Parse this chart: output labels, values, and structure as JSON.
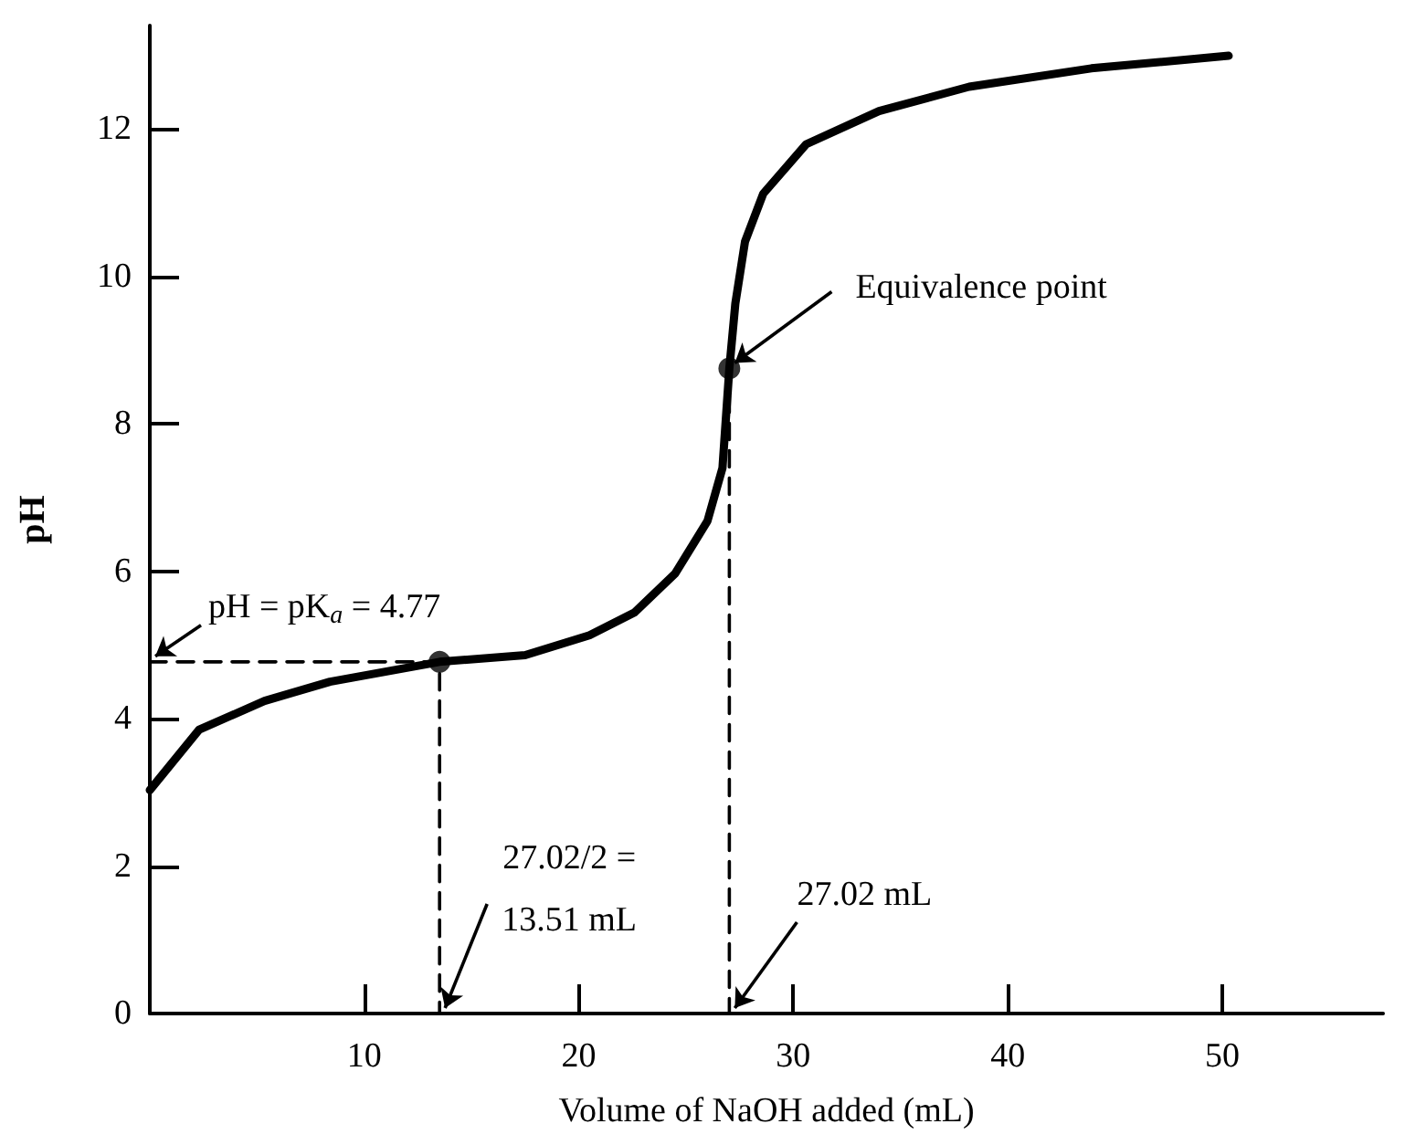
{
  "chart_data": {
    "type": "line",
    "xlabel": "Volume of NaOH added (mL)",
    "ylabel": "pH",
    "xlim": [
      0,
      57.5
    ],
    "xticks": [
      10,
      20,
      30,
      40,
      50
    ],
    "ylim": [
      0,
      13.4
    ],
    "yticks": [
      0,
      2,
      4,
      6,
      8,
      10,
      12
    ],
    "grid": false,
    "series": [
      {
        "color": "#000000",
        "marker": "none",
        "line_style": "solid",
        "x": [
          0,
          2.3,
          5.35,
          8.4,
          13.51,
          17.5,
          20.5,
          22.6,
          24.5,
          26,
          26.7,
          27.02,
          27.3,
          27.75,
          28.6,
          30.6,
          34,
          38.2,
          43.9,
          50.3
        ],
        "values": [
          3.03,
          3.85,
          4.24,
          4.5,
          4.77,
          4.86,
          5.13,
          5.44,
          5.97,
          6.68,
          7.4,
          8.75,
          9.63,
          10.47,
          11.12,
          11.79,
          12.24,
          12.57,
          12.82,
          12.99
        ]
      },
      {
        "type": "line",
        "color": "#000000",
        "marker": "none",
        "line_style": "dashed",
        "x": [
          0,
          13.51,
          13.51
        ],
        "values": [
          4.77,
          4.77,
          0
        ]
      },
      {
        "type": "line",
        "color": "#000000",
        "marker": "none",
        "line_style": "dashed",
        "x": [
          27.02,
          27.02
        ],
        "values": [
          8.75,
          0
        ]
      },
      {
        "type": "scatter",
        "color": "#000000",
        "marker": "circle",
        "x": [
          13.51,
          27.02
        ],
        "values": [
          4.77,
          8.75
        ]
      }
    ],
    "annotations": [
      {
        "text": "pH = pK$_{a}$ = 4.77",
        "x": 0,
        "y": 4.77
      },
      {
        "text": "27.02/2 =\n13.51 mL",
        "x": 13.51,
        "y": 0
      },
      {
        "text": "27.02 mL",
        "x": 27.02,
        "y": 0
      },
      {
        "text": "Equivalence point",
        "x": 27.02,
        "y": 8.75
      }
    ]
  }
}
